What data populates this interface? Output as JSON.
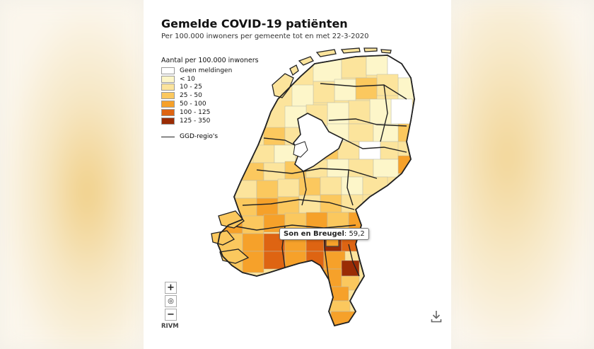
{
  "title": "Gemelde COVID-19 patiënten",
  "subtitle": "Per 100.000 inwoners per gemeente tot en met 22-3-2020",
  "legend": {
    "title": "Aantal per 100.000 inwoners",
    "items": [
      {
        "label": "Geen meldingen",
        "color": "#ffffff"
      },
      {
        "label": "< 10",
        "color": "#fdf6c9"
      },
      {
        "label": "10 - 25",
        "color": "#fce49c"
      },
      {
        "label": "25 - 50",
        "color": "#fbc85e"
      },
      {
        "label": "50 - 100",
        "color": "#f6a12a"
      },
      {
        "label": "100 - 125",
        "color": "#de6412"
      },
      {
        "label": "125 - 350",
        "color": "#9a2c05"
      }
    ],
    "line_label": "GGD-regio's"
  },
  "tooltip": {
    "name": "Son en Breugel",
    "value": ": 59,2"
  },
  "controls": {
    "zoom_in": "+",
    "reset": "◎",
    "zoom_out": "−"
  },
  "credit": "RIVM",
  "icons": {
    "download": "download-icon"
  }
}
